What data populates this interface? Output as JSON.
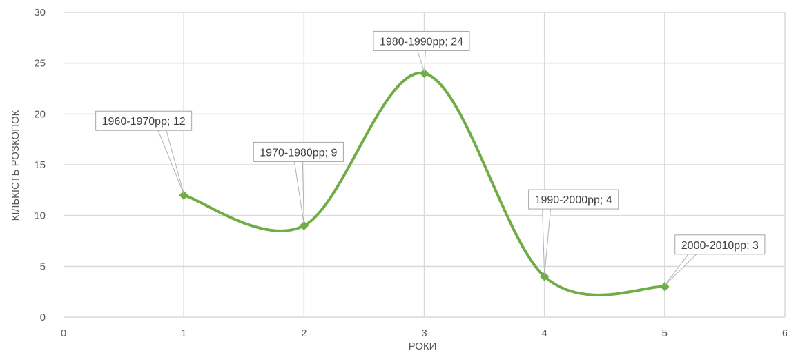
{
  "chart_data": {
    "type": "line",
    "smooth": true,
    "xlabel": "РОКИ",
    "ylabel": "КІЛЬКІСТЬ РОЗКОПОК",
    "xlim": [
      0,
      6
    ],
    "ylim": [
      0,
      30
    ],
    "xticks": [
      "0",
      "1",
      "2",
      "3",
      "4",
      "5",
      "6"
    ],
    "yticks": [
      "0",
      "5",
      "10",
      "15",
      "20",
      "25",
      "30"
    ],
    "grid": true,
    "series": [
      {
        "values": [
          {
            "x": 1,
            "y": 12,
            "label": "1960-1970рр; 12"
          },
          {
            "x": 2,
            "y": 9,
            "label": "1970-1980рр; 9"
          },
          {
            "x": 3,
            "y": 24,
            "label": "1980-1990рр; 24"
          },
          {
            "x": 4,
            "y": 4,
            "label": "1990-2000рр; 4"
          },
          {
            "x": 5,
            "y": 3,
            "label": "2000-2010рр; 3"
          }
        ]
      }
    ]
  },
  "colors": {
    "line": "#70ad47",
    "grid": "#d9d9d9",
    "text": "#595959"
  }
}
